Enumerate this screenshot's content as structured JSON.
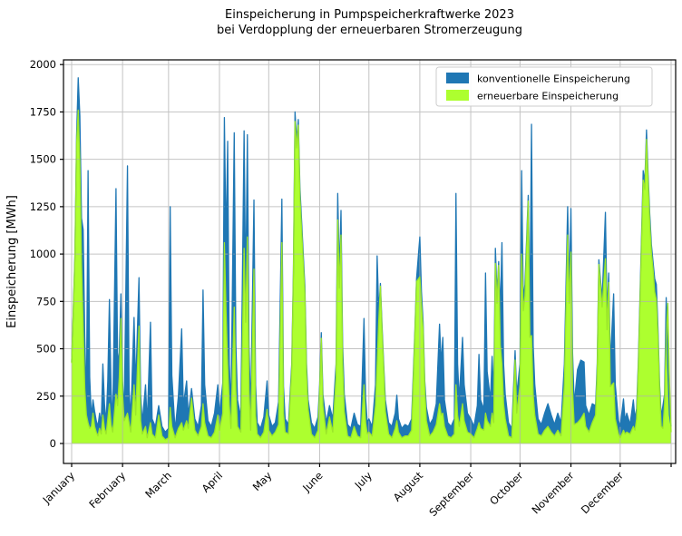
{
  "figure": {
    "title_line1": "Einspeicherung in Pumpspeicherkraftwerke 2023",
    "title_line2": "bei Verdopplung der erneuerbaren Stromerzeugung"
  },
  "chart_data": {
    "type": "area",
    "title": "Einspeicherung in Pumpspeicherkraftwerke 2023 bei Verdopplung der erneuerbaren Stromerzeugung",
    "ylabel": "Einspeicherung [MWh]",
    "xlabel": "",
    "ylim": [
      0,
      2000
    ],
    "yticks": [
      0,
      250,
      500,
      750,
      1000,
      1250,
      1500,
      1750,
      2000
    ],
    "grid": true,
    "legend_position": "upper right",
    "x_unit": "day_of_year_2023",
    "month_labels": [
      "January",
      "February",
      "March",
      "April",
      "May",
      "June",
      "July",
      "August",
      "September",
      "October",
      "November",
      "December"
    ],
    "month_start_days": [
      0,
      31,
      59,
      90,
      120,
      151,
      181,
      212,
      243,
      273,
      304,
      334,
      365
    ],
    "x_total_days": 365,
    "series": [
      {
        "key": "konventionell",
        "name": "konventionelle Einspeicherung",
        "fill": "#1f77b4",
        "line": "#1f77b4"
      },
      {
        "key": "erneuerbar",
        "name": "erneuerbare Einspeicherung",
        "fill": "#adff2f",
        "line": "#9be62a"
      }
    ],
    "points_format": [
      "day",
      "konventionell_MWh",
      "erneuerbar_MWh"
    ],
    "points": [
      [
        0,
        430,
        425
      ],
      [
        1,
        700,
        690
      ],
      [
        2,
        1000,
        980
      ],
      [
        3,
        1620,
        1580
      ],
      [
        4,
        1930,
        1760
      ],
      [
        5,
        1730,
        1480
      ],
      [
        6,
        1190,
        950
      ],
      [
        7,
        1130,
        620
      ],
      [
        8,
        560,
        290
      ],
      [
        9,
        200,
        150
      ],
      [
        10,
        1440,
        110
      ],
      [
        11,
        350,
        80
      ],
      [
        12,
        140,
        90
      ],
      [
        13,
        230,
        160
      ],
      [
        14,
        170,
        90
      ],
      [
        15,
        120,
        60
      ],
      [
        16,
        90,
        40
      ],
      [
        17,
        160,
        80
      ],
      [
        18,
        100,
        50
      ],
      [
        19,
        420,
        150
      ],
      [
        20,
        210,
        80
      ],
      [
        21,
        110,
        50
      ],
      [
        22,
        330,
        130
      ],
      [
        23,
        760,
        210
      ],
      [
        24,
        290,
        100
      ],
      [
        25,
        110,
        60
      ],
      [
        27,
        1345,
        260
      ],
      [
        28,
        420,
        200
      ],
      [
        29,
        480,
        350
      ],
      [
        30,
        790,
        660
      ],
      [
        31,
        330,
        260
      ],
      [
        32,
        160,
        120
      ],
      [
        34,
        1465,
        160
      ],
      [
        35,
        280,
        110
      ],
      [
        36,
        140,
        60
      ],
      [
        38,
        665,
        310
      ],
      [
        39,
        300,
        150
      ],
      [
        41,
        875,
        620
      ],
      [
        42,
        260,
        120
      ],
      [
        43,
        110,
        50
      ],
      [
        45,
        310,
        90
      ],
      [
        46,
        100,
        30
      ],
      [
        48,
        640,
        110
      ],
      [
        49,
        130,
        50
      ],
      [
        51,
        90,
        30
      ],
      [
        53,
        200,
        150
      ],
      [
        55,
        90,
        40
      ],
      [
        57,
        60,
        20
      ],
      [
        59,
        80,
        30
      ],
      [
        60,
        1250,
        190
      ],
      [
        61,
        360,
        90
      ],
      [
        63,
        70,
        30
      ],
      [
        65,
        250,
        80
      ],
      [
        67,
        605,
        110
      ],
      [
        68,
        200,
        70
      ],
      [
        70,
        330,
        120
      ],
      [
        71,
        150,
        80
      ],
      [
        73,
        290,
        240
      ],
      [
        75,
        130,
        70
      ],
      [
        77,
        90,
        40
      ],
      [
        79,
        200,
        90
      ],
      [
        80,
        810,
        210
      ],
      [
        81,
        310,
        110
      ],
      [
        83,
        120,
        40
      ],
      [
        85,
        90,
        30
      ],
      [
        87,
        160,
        60
      ],
      [
        89,
        310,
        150
      ],
      [
        90,
        150,
        70
      ],
      [
        92,
        320,
        160
      ],
      [
        93,
        1720,
        1060
      ],
      [
        94,
        1050,
        700
      ],
      [
        95,
        1595,
        420
      ],
      [
        96,
        420,
        200
      ],
      [
        97,
        180,
        80
      ],
      [
        99,
        1640,
        720
      ],
      [
        100,
        520,
        280
      ],
      [
        101,
        230,
        90
      ],
      [
        103,
        140,
        60
      ],
      [
        105,
        1650,
        1030
      ],
      [
        106,
        800,
        640
      ],
      [
        107,
        1630,
        1090
      ],
      [
        108,
        520,
        280
      ],
      [
        109,
        160,
        70
      ],
      [
        111,
        1285,
        920
      ],
      [
        112,
        310,
        150
      ],
      [
        113,
        110,
        50
      ],
      [
        115,
        80,
        30
      ],
      [
        117,
        140,
        60
      ],
      [
        119,
        330,
        180
      ],
      [
        120,
        150,
        70
      ],
      [
        122,
        90,
        40
      ],
      [
        124,
        110,
        60
      ],
      [
        126,
        220,
        100
      ],
      [
        128,
        1290,
        1060
      ],
      [
        129,
        300,
        160
      ],
      [
        130,
        130,
        60
      ],
      [
        132,
        100,
        50
      ],
      [
        134,
        420,
        390
      ],
      [
        135,
        900,
        870
      ],
      [
        136,
        1750,
        1700
      ],
      [
        137,
        1600,
        1560
      ],
      [
        138,
        1710,
        1680
      ],
      [
        139,
        1350,
        1300
      ],
      [
        140,
        1180,
        1130
      ],
      [
        142,
        830,
        790
      ],
      [
        143,
        420,
        370
      ],
      [
        144,
        230,
        180
      ],
      [
        146,
        110,
        50
      ],
      [
        148,
        80,
        30
      ],
      [
        150,
        140,
        70
      ],
      [
        151,
        310,
        280
      ],
      [
        152,
        585,
        555
      ],
      [
        153,
        260,
        200
      ],
      [
        155,
        110,
        50
      ],
      [
        157,
        200,
        140
      ],
      [
        159,
        130,
        60
      ],
      [
        161,
        420,
        350
      ],
      [
        162,
        1320,
        1180
      ],
      [
        163,
        900,
        820
      ],
      [
        164,
        1230,
        1100
      ],
      [
        165,
        520,
        420
      ],
      [
        166,
        260,
        170
      ],
      [
        168,
        100,
        40
      ],
      [
        170,
        80,
        30
      ],
      [
        172,
        160,
        90
      ],
      [
        174,
        100,
        40
      ],
      [
        176,
        90,
        30
      ],
      [
        178,
        660,
        310
      ],
      [
        179,
        240,
        110
      ],
      [
        180,
        110,
        50
      ],
      [
        181,
        130,
        60
      ],
      [
        183,
        90,
        40
      ],
      [
        185,
        310,
        200
      ],
      [
        186,
        990,
        420
      ],
      [
        187,
        700,
        650
      ],
      [
        188,
        845,
        830
      ],
      [
        189,
        620,
        590
      ],
      [
        190,
        420,
        390
      ],
      [
        191,
        230,
        170
      ],
      [
        193,
        110,
        50
      ],
      [
        195,
        90,
        30
      ],
      [
        197,
        160,
        80
      ],
      [
        198,
        255,
        120
      ],
      [
        199,
        130,
        60
      ],
      [
        201,
        80,
        30
      ],
      [
        203,
        100,
        40
      ],
      [
        205,
        90,
        40
      ],
      [
        207,
        130,
        70
      ],
      [
        209,
        600,
        580
      ],
      [
        210,
        870,
        855
      ],
      [
        212,
        1090,
        880
      ],
      [
        213,
        800,
        730
      ],
      [
        214,
        640,
        600
      ],
      [
        215,
        330,
        290
      ],
      [
        216,
        190,
        120
      ],
      [
        218,
        100,
        40
      ],
      [
        220,
        130,
        60
      ],
      [
        222,
        210,
        100
      ],
      [
        224,
        630,
        210
      ],
      [
        225,
        420,
        150
      ],
      [
        226,
        560,
        160
      ],
      [
        227,
        230,
        90
      ],
      [
        229,
        110,
        40
      ],
      [
        231,
        90,
        30
      ],
      [
        233,
        130,
        50
      ],
      [
        234,
        1320,
        310
      ],
      [
        235,
        420,
        150
      ],
      [
        236,
        230,
        90
      ],
      [
        238,
        560,
        210
      ],
      [
        239,
        310,
        120
      ],
      [
        241,
        160,
        60
      ],
      [
        243,
        130,
        50
      ],
      [
        245,
        90,
        30
      ],
      [
        247,
        200,
        80
      ],
      [
        248,
        470,
        110
      ],
      [
        249,
        230,
        80
      ],
      [
        251,
        180,
        70
      ],
      [
        252,
        900,
        160
      ],
      [
        253,
        380,
        120
      ],
      [
        255,
        230,
        90
      ],
      [
        256,
        460,
        160
      ],
      [
        257,
        260,
        110
      ],
      [
        258,
        1030,
        950
      ],
      [
        259,
        790,
        740
      ],
      [
        260,
        960,
        940
      ],
      [
        261,
        700,
        520
      ],
      [
        262,
        1060,
        420
      ],
      [
        263,
        420,
        210
      ],
      [
        264,
        260,
        130
      ],
      [
        266,
        110,
        40
      ],
      [
        268,
        80,
        30
      ],
      [
        270,
        490,
        440
      ],
      [
        271,
        260,
        160
      ],
      [
        273,
        420,
        310
      ],
      [
        274,
        1440,
        1000
      ],
      [
        275,
        760,
        700
      ],
      [
        276,
        840,
        780
      ],
      [
        278,
        1310,
        1280
      ],
      [
        279,
        700,
        560
      ],
      [
        280,
        1685,
        570
      ],
      [
        281,
        520,
        260
      ],
      [
        282,
        310,
        150
      ],
      [
        284,
        130,
        50
      ],
      [
        286,
        100,
        40
      ],
      [
        288,
        160,
        70
      ],
      [
        290,
        210,
        90
      ],
      [
        292,
        150,
        60
      ],
      [
        294,
        100,
        40
      ],
      [
        296,
        160,
        70
      ],
      [
        298,
        110,
        40
      ],
      [
        300,
        420,
        310
      ],
      [
        302,
        1250,
        1100
      ],
      [
        303,
        820,
        740
      ],
      [
        304,
        1240,
        1010
      ],
      [
        305,
        480,
        280
      ],
      [
        306,
        210,
        100
      ],
      [
        308,
        390,
        110
      ],
      [
        310,
        440,
        130
      ],
      [
        312,
        430,
        160
      ],
      [
        313,
        200,
        90
      ],
      [
        315,
        150,
        60
      ],
      [
        317,
        210,
        110
      ],
      [
        319,
        200,
        150
      ],
      [
        320,
        420,
        380
      ],
      [
        321,
        970,
        945
      ],
      [
        323,
        760,
        720
      ],
      [
        325,
        1220,
        975
      ],
      [
        326,
        680,
        600
      ],
      [
        327,
        900,
        850
      ],
      [
        328,
        420,
        300
      ],
      [
        330,
        790,
        320
      ],
      [
        331,
        310,
        130
      ],
      [
        333,
        120,
        50
      ],
      [
        334,
        90,
        30
      ],
      [
        336,
        235,
        70
      ],
      [
        337,
        120,
        50
      ],
      [
        338,
        160,
        60
      ],
      [
        340,
        100,
        50
      ],
      [
        342,
        230,
        90
      ],
      [
        343,
        130,
        70
      ],
      [
        344,
        185,
        130
      ],
      [
        345,
        420,
        390
      ],
      [
        346,
        760,
        720
      ],
      [
        347,
        1100,
        1060
      ],
      [
        348,
        1440,
        1390
      ],
      [
        349,
        1380,
        1340
      ],
      [
        350,
        1655,
        1605
      ],
      [
        351,
        1420,
        1380
      ],
      [
        352,
        1210,
        1160
      ],
      [
        353,
        1050,
        1010
      ],
      [
        354,
        960,
        920
      ],
      [
        355,
        870,
        800
      ],
      [
        356,
        840,
        760
      ],
      [
        357,
        610,
        560
      ],
      [
        358,
        310,
        270
      ],
      [
        359,
        140,
        90
      ],
      [
        360,
        200,
        80
      ],
      [
        361,
        260,
        210
      ],
      [
        362,
        770,
        560
      ],
      [
        363,
        400,
        740
      ],
      [
        364,
        150,
        330
      ],
      [
        365,
        90,
        60
      ]
    ]
  },
  "legend": {
    "items": [
      {
        "label": "konventionelle Einspeicherung",
        "swatch": "#1f77b4"
      },
      {
        "label": "erneuerbare Einspeicherung",
        "swatch": "#adff2f"
      }
    ]
  },
  "style": {
    "grid_color": "#b0b0b0",
    "spine_color": "#000000",
    "legend_border": "#cccccc",
    "background": "#ffffff"
  }
}
